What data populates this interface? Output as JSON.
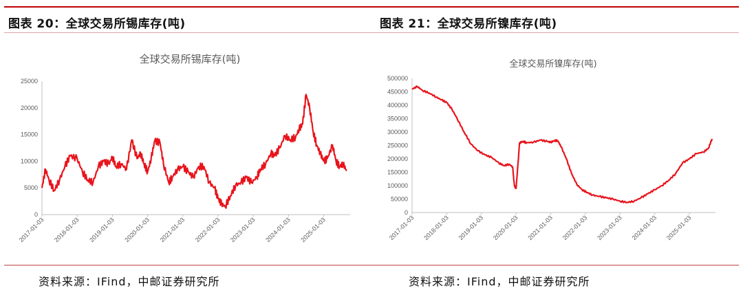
{
  "left": {
    "fig_title": "图表 20：全球交易所锡库存(吨)",
    "source": "资料来源：IFind，中邮证券研究所"
  },
  "right": {
    "fig_title": "图表 21：全球交易所镍库存(吨)",
    "source": "资料来源：IFind，中邮证券研究所"
  },
  "colors": {
    "line": "#e8141c",
    "axis": "#bfbfbf",
    "rule": "#c00000"
  },
  "chart_data": [
    {
      "type": "line",
      "title": "全球交易所锡库存(吨)",
      "xlabel": "",
      "ylabel": "",
      "ylim": [
        0,
        25000
      ],
      "yticks": [
        "0",
        "5000",
        "10000",
        "15000",
        "20000",
        "25000"
      ],
      "xticks": [
        "2017-01-03",
        "2018-01-03",
        "2019-01-03",
        "2020-01-03",
        "2021-01-03",
        "2022-01-03",
        "2023-01-03",
        "2024-01-03",
        "2025-01-03"
      ],
      "grid": false,
      "x": [
        2017.0,
        2017.1,
        2017.2,
        2017.35,
        2017.5,
        2017.65,
        2017.8,
        2018.0,
        2018.15,
        2018.3,
        2018.45,
        2018.6,
        2018.75,
        2018.9,
        2019.0,
        2019.1,
        2019.25,
        2019.4,
        2019.55,
        2019.7,
        2019.8,
        2019.9,
        2020.0,
        2020.1,
        2020.2,
        2020.35,
        2020.45,
        2020.6,
        2020.7,
        2020.85,
        2021.0,
        2021.15,
        2021.3,
        2021.45,
        2021.6,
        2021.75,
        2021.9,
        2022.0,
        2022.1,
        2022.2,
        2022.35,
        2022.5,
        2022.65,
        2022.8,
        2022.95,
        2023.1,
        2023.2,
        2023.35,
        2023.5,
        2023.6,
        2023.75,
        2023.9,
        2024.05,
        2024.2,
        2024.3,
        2024.4,
        2024.5,
        2024.6,
        2024.7,
        2024.8,
        2024.9,
        2025.0,
        2025.1,
        2025.25,
        2025.35,
        2025.45,
        2025.55,
        2025.65
      ],
      "series": [
        {
          "values": [
            5000,
            8500,
            6500,
            4500,
            6500,
            9000,
            11000,
            10500,
            8000,
            6500,
            6000,
            9000,
            10000,
            9500,
            10800,
            9000,
            9500,
            8500,
            14000,
            10500,
            11500,
            9500,
            8000,
            10500,
            13800,
            13500,
            9500,
            6000,
            7000,
            8500,
            9000,
            8000,
            7000,
            9000,
            9000,
            6000,
            5000,
            3000,
            2000,
            1500,
            3500,
            5500,
            6000,
            7000,
            6000,
            7000,
            8500,
            9500,
            11500,
            11000,
            12500,
            14800,
            14000,
            14500,
            16000,
            17000,
            22500,
            20000,
            15500,
            13000,
            11500,
            10000,
            10500,
            13000,
            10000,
            9000,
            9500,
            8200
          ]
        }
      ]
    },
    {
      "type": "line",
      "title": "全球交易所镍库存(吨)",
      "xlabel": "",
      "ylabel": "",
      "ylim": [
        0,
        500000
      ],
      "yticks": [
        "0",
        "50000",
        "100000",
        "150000",
        "200000",
        "250000",
        "300000",
        "350000",
        "400000",
        "450000",
        "500000"
      ],
      "xticks": [
        "2017-01-03",
        "2018-01-03",
        "2019-01-03",
        "2020-01-03",
        "2021-01-03",
        "2022-01-03",
        "2023-01-03",
        "2024-01-03",
        "2025-01-03"
      ],
      "grid": false,
      "x": [
        2017.0,
        2017.15,
        2017.3,
        2017.5,
        2017.7,
        2017.85,
        2018.0,
        2018.15,
        2018.3,
        2018.5,
        2018.7,
        2018.9,
        2019.1,
        2019.3,
        2019.5,
        2019.65,
        2019.8,
        2019.9,
        2019.95,
        2020.0,
        2020.1,
        2020.2,
        2020.3,
        2020.5,
        2020.7,
        2020.9,
        2021.0,
        2021.1,
        2021.2,
        2021.3,
        2021.45,
        2021.6,
        2021.75,
        2021.9,
        2022.05,
        2022.2,
        2022.4,
        2022.6,
        2022.8,
        2023.0,
        2023.2,
        2023.4,
        2023.6,
        2023.8,
        2024.0,
        2024.2,
        2024.4,
        2024.6,
        2024.8,
        2025.0,
        2025.2,
        2025.4,
        2025.55,
        2025.65
      ],
      "series": [
        {
          "values": [
            460000,
            470000,
            455000,
            445000,
            430000,
            420000,
            410000,
            385000,
            350000,
            300000,
            255000,
            230000,
            215000,
            205000,
            185000,
            175000,
            180000,
            170000,
            100000,
            90000,
            260000,
            265000,
            260000,
            262000,
            270000,
            265000,
            262000,
            268000,
            268000,
            245000,
            200000,
            145000,
            105000,
            85000,
            75000,
            65000,
            60000,
            55000,
            50000,
            42000,
            38000,
            42000,
            55000,
            70000,
            85000,
            100000,
            120000,
            145000,
            185000,
            200000,
            220000,
            225000,
            240000,
            275000
          ]
        }
      ]
    }
  ]
}
